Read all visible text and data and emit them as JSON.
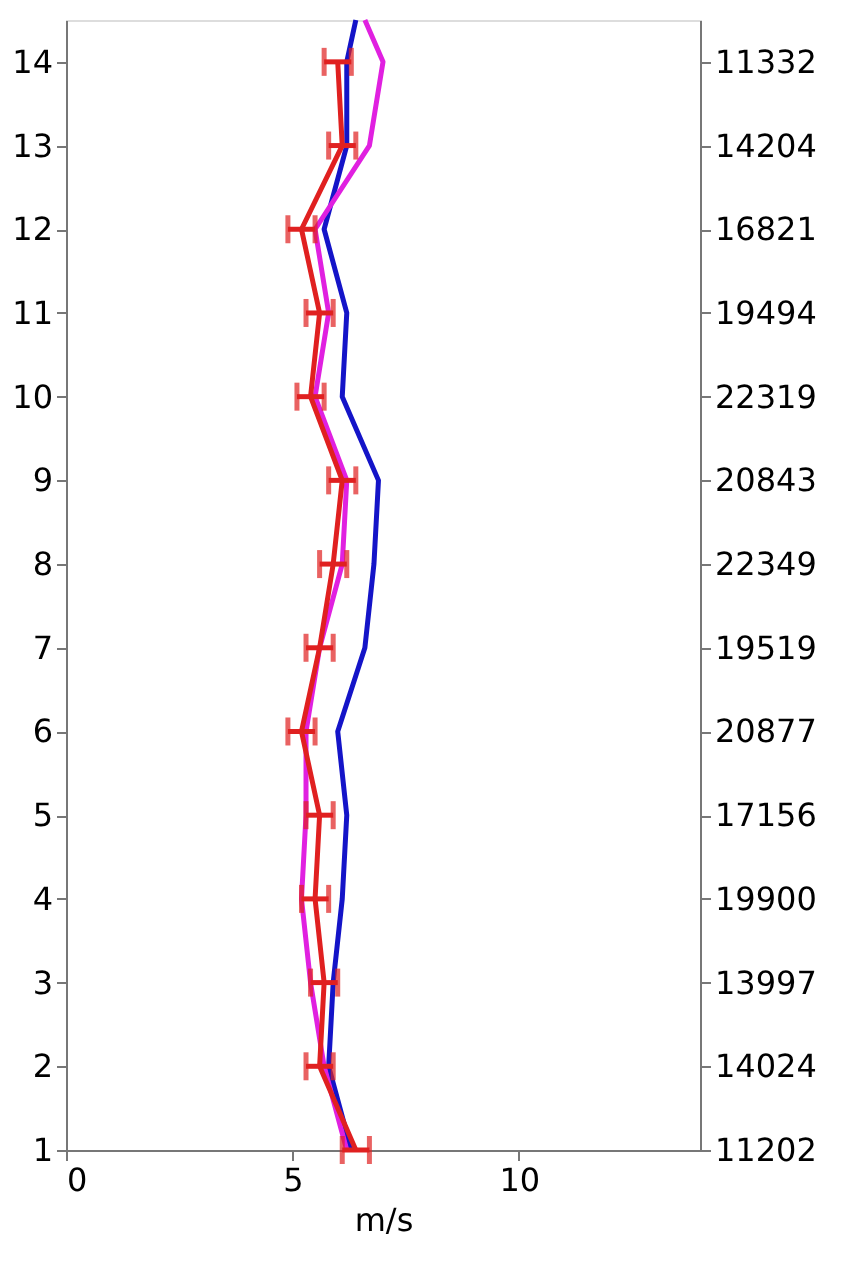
{
  "chart_data": {
    "type": "line",
    "xlabel": "m/s",
    "series": [
      {
        "color": "#1414c8",
        "x": [
          6.3,
          5.8,
          5.9,
          6.1,
          6.2,
          6.0,
          6.6,
          6.8,
          6.9,
          6.1,
          6.2,
          5.7,
          6.2,
          6.2,
          6.4
        ],
        "values": [
          1,
          2,
          3,
          4,
          5,
          6,
          7,
          8,
          9,
          10,
          11,
          12,
          13,
          14,
          14.5
        ]
      },
      {
        "color": "#e020e0",
        "x": [
          6.2,
          5.7,
          5.4,
          5.2,
          5.3,
          5.3,
          5.6,
          6.1,
          6.2,
          5.5,
          5.8,
          5.5,
          6.7,
          7.0,
          6.6
        ],
        "values": [
          1,
          2,
          3,
          4,
          5,
          6,
          7,
          8,
          9,
          10,
          11,
          12,
          13,
          14,
          14.5
        ]
      },
      {
        "color": "#e02020",
        "x": [
          6.4,
          5.6,
          5.7,
          5.5,
          5.6,
          5.2,
          5.6,
          5.9,
          6.1,
          5.4,
          5.6,
          5.2,
          6.1,
          6.0
        ],
        "values": [
          1,
          2,
          3,
          4,
          5,
          6,
          7,
          8,
          9,
          10,
          11,
          12,
          13,
          14
        ],
        "xerrors": [
          0.3,
          0.3,
          0.3,
          0.3,
          0.3,
          0.3,
          0.3,
          0.3,
          0.3,
          0.3,
          0.3,
          0.3,
          0.3,
          0.3
        ]
      }
    ],
    "xlim": [
      0,
      14
    ],
    "xticks": [
      0,
      5,
      10
    ],
    "ylim": [
      1,
      14.5
    ],
    "yticks": [
      1,
      2,
      3,
      4,
      5,
      6,
      7,
      8,
      9,
      10,
      11,
      12,
      13,
      14
    ],
    "y2_categories": [
      "11332",
      "14204",
      "16821",
      "19494",
      "22319",
      "20843",
      "22349",
      "19519",
      "20877",
      "17156",
      "19900",
      "13997",
      "14024",
      "11202"
    ],
    "grid": false,
    "line_style": "solid",
    "marker": "none"
  }
}
